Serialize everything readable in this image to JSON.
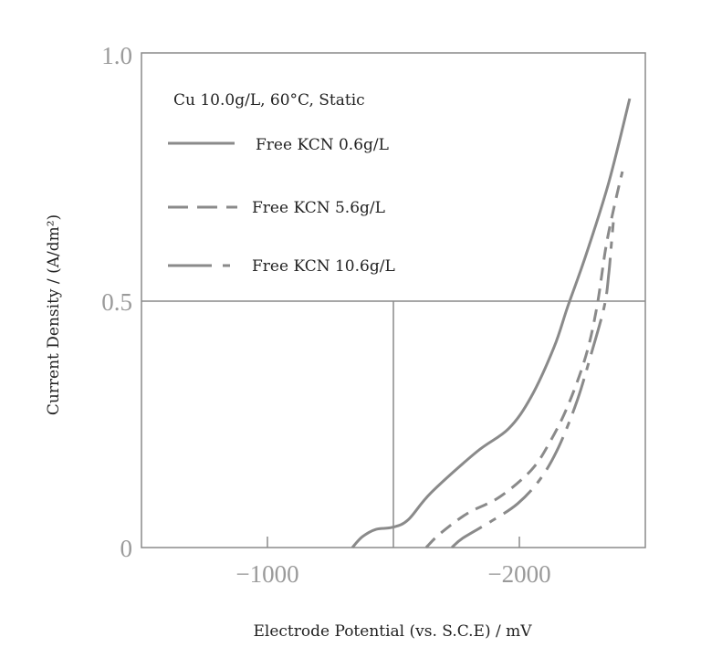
{
  "chart_data": {
    "type": "line",
    "title": "",
    "xlabel": "Electrode Potential (vs. S.C.E) / mV",
    "ylabel": "Current Density / (A/dm²)",
    "xlim": [
      -500,
      -2500
    ],
    "ylim": [
      0,
      1.0
    ],
    "x_ticks": [
      {
        "value": -1000,
        "label": "−1000"
      },
      {
        "value": -2000,
        "label": "−2000"
      }
    ],
    "y_ticks": [
      {
        "value": 0,
        "label": "0"
      },
      {
        "value": 0.5,
        "label": "0.5"
      },
      {
        "value": 1.0,
        "label": "1.0"
      }
    ],
    "grid": {
      "vertical_at": -1500,
      "horizontal_at": 0.5
    },
    "legend_title": "Cu 10.0g/L, 60°C, Static",
    "legend_position": "top-left",
    "line_color": "#8a8a8a",
    "series": [
      {
        "name": "Free KCN 0.6g/L",
        "style": "solid",
        "x": [
          -1337,
          -1377,
          -1431,
          -1496,
          -1558,
          -1649,
          -1830,
          -1957,
          -2047,
          -2138,
          -2192,
          -2264,
          -2355,
          -2438
        ],
        "y": [
          0,
          0.022,
          0.037,
          0.041,
          0.056,
          0.111,
          0.194,
          0.241,
          0.306,
          0.407,
          0.489,
          0.593,
          0.741,
          0.911
        ]
      },
      {
        "name": "Free KCN 5.6g/L",
        "style": "dashed",
        "x": [
          -1630,
          -1685,
          -1793,
          -1920,
          -2047,
          -2120,
          -2192,
          -2264,
          -2308,
          -2344,
          -2380,
          -2409
        ],
        "y": [
          0,
          0.028,
          0.069,
          0.102,
          0.157,
          0.213,
          0.287,
          0.389,
          0.489,
          0.611,
          0.7,
          0.763
        ]
      },
      {
        "name": "Free KCN 10.6g/L",
        "style": "dash-dot",
        "x": [
          -1732,
          -1775,
          -1884,
          -1993,
          -2083,
          -2156,
          -2228,
          -2283,
          -2337,
          -2355,
          -2366,
          -2373
        ],
        "y": [
          0,
          0.019,
          0.052,
          0.089,
          0.139,
          0.204,
          0.296,
          0.389,
          0.489,
          0.556,
          0.62,
          0.66
        ]
      }
    ]
  }
}
